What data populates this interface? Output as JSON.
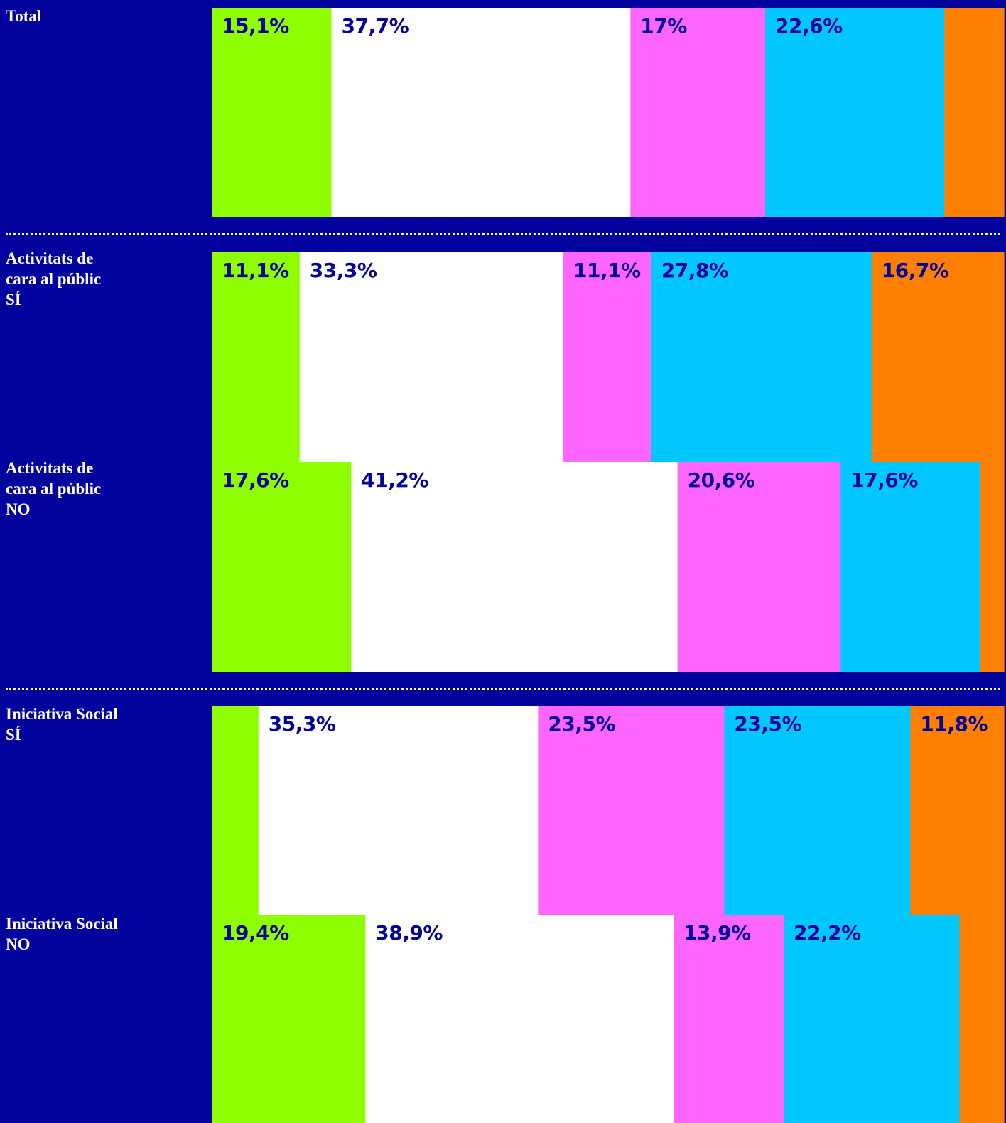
{
  "colors": {
    "background": "#02029c",
    "label_text": "#ffffff",
    "value_text": "#02029c",
    "segments": [
      "#8fff00",
      "#ffffff",
      "#ff66ff",
      "#00c8ff",
      "#ff8000"
    ]
  },
  "chart_data": {
    "type": "bar",
    "orientation": "horizontal-stacked-100",
    "value_format": "percent-comma-decimal",
    "grid": false,
    "legend": "none",
    "rows": [
      {
        "label": "Total",
        "values": [
          15.1,
          37.7,
          17,
          22.6,
          7.5
        ],
        "value_labels": [
          "15,1%",
          "37,7%",
          "17%",
          "22,6%",
          ""
        ],
        "group": 1
      },
      {
        "label": "Activitats de\ncara al públic\nSÍ",
        "values": [
          11.1,
          33.3,
          11.1,
          27.8,
          16.7
        ],
        "value_labels": [
          "11,1%",
          "33,3%",
          "11,1%",
          "27,8%",
          "16,7%"
        ],
        "group": 2
      },
      {
        "label": "Activitats de\ncara al públic\nNO",
        "values": [
          17.6,
          41.2,
          20.6,
          17.6,
          3.0
        ],
        "value_labels": [
          "17,6%",
          "41,2%",
          "20,6%",
          "17,6%",
          ""
        ],
        "group": 2
      },
      {
        "label": "Iniciativa Social\nSÍ",
        "values": [
          5.9,
          35.3,
          23.5,
          23.5,
          11.8
        ],
        "value_labels": [
          "",
          "35,3%",
          "23,5%",
          "23,5%",
          "11,8%"
        ],
        "group": 3
      },
      {
        "label": "Iniciativa Social\nNO",
        "values": [
          19.4,
          38.9,
          13.9,
          22.2,
          5.6
        ],
        "value_labels": [
          "19,4%",
          "38,9%",
          "13,9%",
          "22,2%",
          ""
        ],
        "group": 3
      }
    ]
  }
}
